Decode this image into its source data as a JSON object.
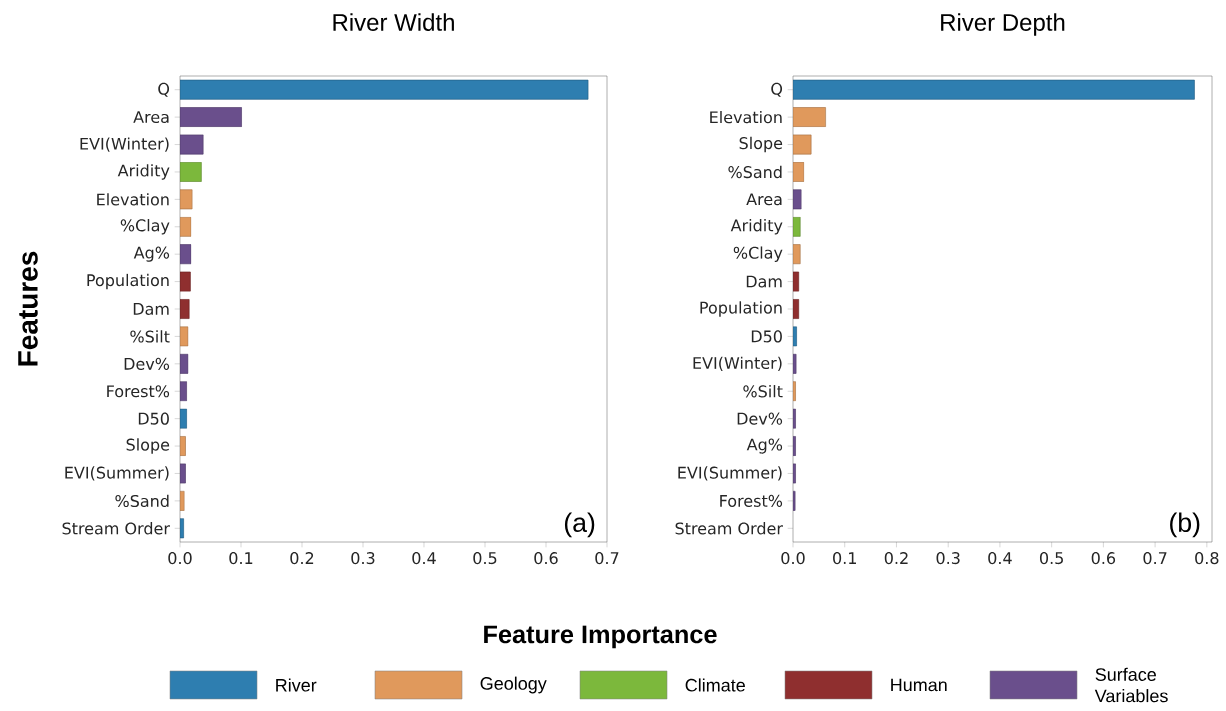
{
  "chart_data": [
    {
      "type": "bar",
      "orientation": "horizontal",
      "stacked": true,
      "title": "River Width",
      "ylabel": "Features",
      "xlabel": "Feature Importance",
      "legend": "bottom",
      "annotations": [
        "(a)"
      ],
      "categories": [
        "Q",
        "Area",
        "EVI(Winter)",
        "Aridity",
        "Elevation",
        "%Clay",
        "Ag%",
        "Population",
        "Dam",
        "%Silt",
        "Dev%",
        "Forest%",
        "D50",
        "Slope",
        "EVI(Summer)",
        "%Sand",
        "Stream Order"
      ],
      "series": [
        {
          "name": "River",
          "color": "#2e7eb0",
          "values": [
            0.669,
            null,
            null,
            null,
            null,
            null,
            null,
            null,
            null,
            null,
            null,
            null,
            0.011,
            null,
            null,
            null,
            0.006
          ]
        },
        {
          "name": "Geology",
          "color": "#e0995c",
          "values": [
            null,
            null,
            null,
            null,
            0.02,
            0.018,
            null,
            null,
            null,
            0.013,
            null,
            null,
            null,
            0.009,
            null,
            0.007,
            null
          ]
        },
        {
          "name": "Climate",
          "color": "#7cb83c",
          "values": [
            null,
            null,
            null,
            0.035,
            null,
            null,
            null,
            null,
            null,
            null,
            null,
            null,
            null,
            null,
            null,
            null,
            null
          ]
        },
        {
          "name": "Human",
          "color": "#8f2f2f",
          "values": [
            null,
            null,
            null,
            null,
            null,
            null,
            null,
            0.017,
            0.015,
            null,
            null,
            null,
            null,
            null,
            null,
            null,
            null
          ]
        },
        {
          "name": "Surface Variables",
          "color": "#6a4f8c",
          "values": [
            null,
            0.101,
            0.038,
            null,
            null,
            null,
            0.018,
            null,
            null,
            null,
            0.013,
            0.011,
            null,
            null,
            0.009,
            null,
            null
          ]
        }
      ],
      "xlim": [
        0,
        0.7
      ],
      "xticks": [
        {
          "value": 0,
          "label": "0.0"
        },
        0.1,
        0.2,
        0.3,
        0.4,
        0.5,
        0.6,
        0.7
      ]
    },
    {
      "type": "bar",
      "orientation": "horizontal",
      "title": "River Depth",
      "annotations": [
        "(b)"
      ],
      "categories": [
        "Q",
        "Elevation",
        "Slope",
        "%Sand",
        "Area",
        "Aridity",
        "%Clay",
        "Dam",
        "Population",
        "D50",
        "EVI(Winter)",
        "%Silt",
        "Dev%",
        "Ag%",
        "EVI(Summer)",
        "Forest%",
        "Stream Order"
      ],
      "values": [
        0.776,
        0.063,
        0.035,
        0.021,
        0.016,
        0.014,
        0.014,
        0.011,
        0.011,
        0.007,
        0.006,
        0.005,
        0.005,
        0.005,
        0.005,
        0.004,
        null
      ],
      "colors": [
        "#2e7eb0",
        "#e0995c",
        "#e0995c",
        "#e0995c",
        "#6a4f8c",
        "#7cb83c",
        "#e0995c",
        "#8f2f2f",
        "#8f2f2f",
        "#2e7eb0",
        "#6a4f8c",
        "#e0995c",
        "#6a4f8c",
        "#6a4f8c",
        "#6a4f8c",
        "#6a4f8c",
        "#2e7eb0"
      ],
      "xlim": [
        0,
        0.81
      ],
      "xticks": [
        {
          "value": 0,
          "label": "0.0"
        },
        0.1,
        0.2,
        0.3,
        0.4,
        0.5,
        0.6,
        0.7,
        0.8
      ]
    }
  ]
}
